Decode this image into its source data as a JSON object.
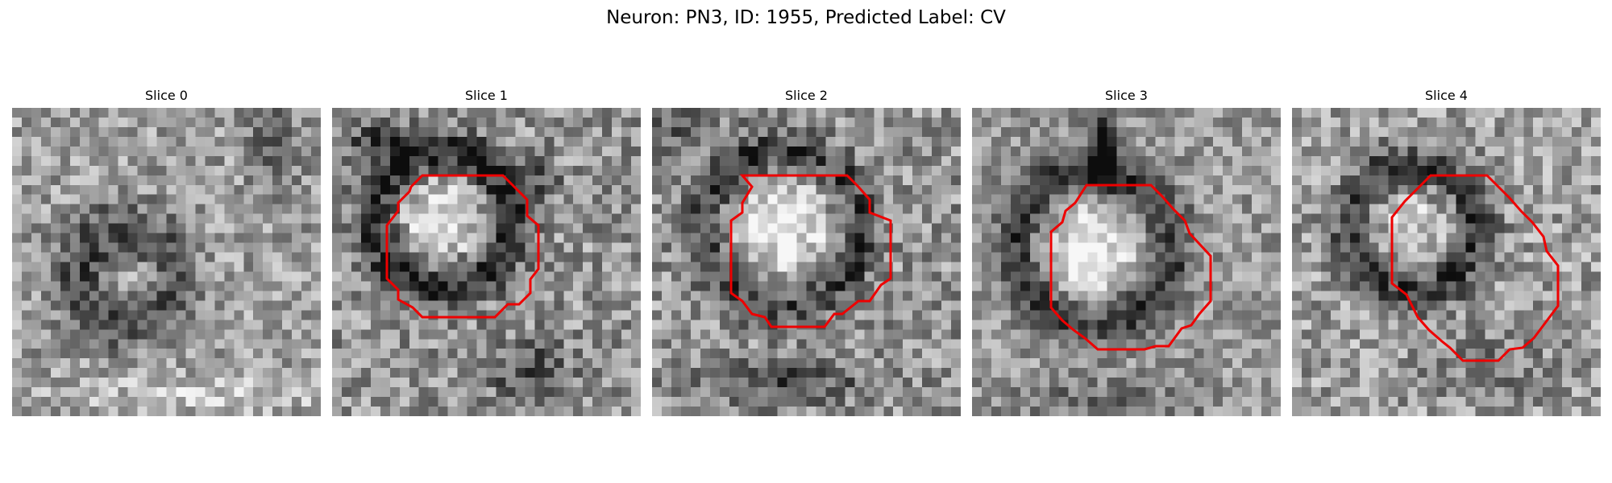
{
  "figure": {
    "title": "Neuron: PN3, ID: 1955, Predicted Label: CV"
  },
  "colors": {
    "contour": "#ee0000",
    "background": "#ffffff",
    "colormap": "gray"
  },
  "panels": [
    {
      "title": "Slice 0",
      "has_contour": false
    },
    {
      "title": "Slice 1",
      "has_contour": true
    },
    {
      "title": "Slice 2",
      "has_contour": true
    },
    {
      "title": "Slice 3",
      "has_contour": true
    },
    {
      "title": "Slice 4",
      "has_contour": true
    }
  ]
}
